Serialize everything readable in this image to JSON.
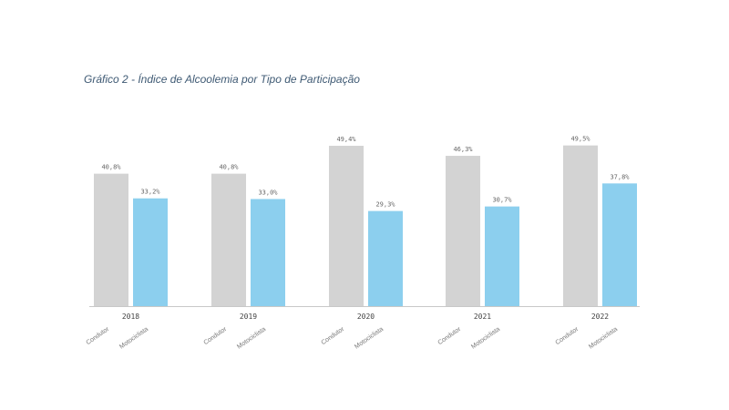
{
  "title": "Gráfico 2 - Índice de Alcoolemia por Tipo de Participação",
  "colors": {
    "Condutor": "#d3d3d3",
    "Motociclista": "#8ccfee",
    "axis": "#c8c8c8"
  },
  "chart_data": {
    "type": "bar",
    "title": "Gráfico 2 - Índice de Alcoolemia por Tipo de Participação",
    "categories": [
      "2018",
      "2019",
      "2020",
      "2021",
      "2022"
    ],
    "series": [
      {
        "name": "Condutor",
        "values": [
          40.8,
          40.8,
          49.4,
          46.3,
          49.5
        ],
        "labels": [
          "40,8%",
          "40,8%",
          "49,4%",
          "46,3%",
          "49,5%"
        ]
      },
      {
        "name": "Motociclista",
        "values": [
          33.2,
          33.0,
          29.3,
          30.7,
          37.8
        ],
        "labels": [
          "33,2%",
          "33,0%",
          "29,3%",
          "30,7%",
          "37,8%"
        ]
      }
    ],
    "ylim": [
      0,
      50
    ],
    "grid": false,
    "legend": "none"
  }
}
